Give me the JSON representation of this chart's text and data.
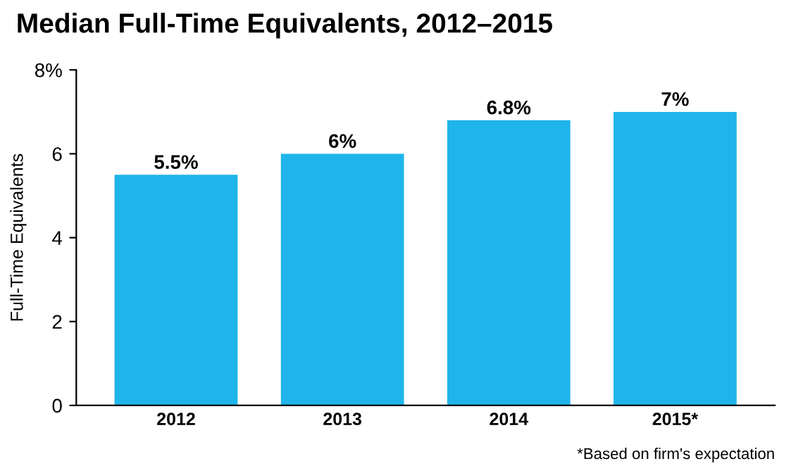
{
  "chart_data": {
    "type": "bar",
    "title": "Median Full-Time Equivalents, 2012–2015",
    "ylabel": "Full-Time Equivalents",
    "categories": [
      "2012",
      "2013",
      "2014",
      "2015*"
    ],
    "values": [
      5.5,
      6,
      6.8,
      7
    ],
    "value_labels": [
      "5.5%",
      "6%",
      "6.8%",
      "7%"
    ],
    "color": "#1fb5ea",
    "ylim": [
      0,
      8
    ],
    "yticks": [
      0,
      2,
      4,
      6,
      {
        "value": 8,
        "label": "8%"
      }
    ],
    "grid": false,
    "annotations": [
      "*Based on firm's expectation"
    ]
  }
}
